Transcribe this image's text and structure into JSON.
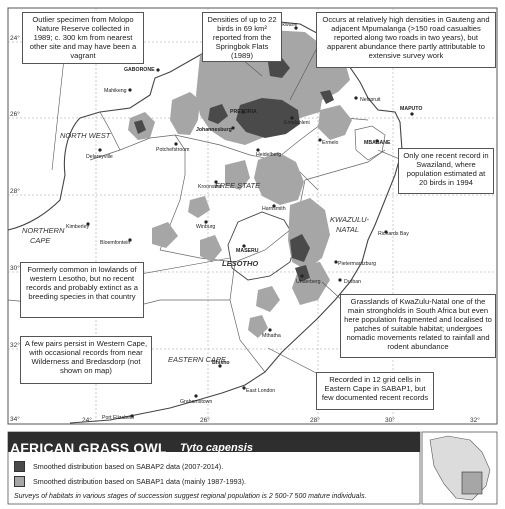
{
  "map": {
    "title": "AFRICAN GRASS OWL",
    "scientific_name": "Tyto capensis",
    "colors": {
      "sabap2": "#4a4a4a",
      "sabap1": "#a6a6a6",
      "background": "#ffffff",
      "border": "#666666"
    },
    "lat_labels": [
      {
        "text": "24°"
      },
      {
        "text": "26°"
      },
      {
        "text": "28°"
      },
      {
        "text": "30°"
      },
      {
        "text": "32°"
      },
      {
        "text": "34°"
      }
    ],
    "lon_labels": [
      {
        "text": "24°"
      },
      {
        "text": "26°"
      },
      {
        "text": "28°"
      },
      {
        "text": "30°"
      },
      {
        "text": "32°"
      }
    ],
    "regions": [
      {
        "text": "NORTH WEST"
      },
      {
        "text": "FREE STATE"
      },
      {
        "text": "KWAZULU-"
      },
      {
        "text": "NATAL"
      },
      {
        "text": "NORTHERN"
      },
      {
        "text": "CAPE"
      },
      {
        "text": "LESOTHO"
      },
      {
        "text": "EASTERN CAPE"
      }
    ],
    "towns": [
      {
        "name": "Polokwane"
      },
      {
        "name": "GABORONE"
      },
      {
        "name": "Mahikeng"
      },
      {
        "name": "PRETORIA"
      },
      {
        "name": "Johannesburg"
      },
      {
        "name": "Emalahleni"
      },
      {
        "name": "Nelspruit"
      },
      {
        "name": "MAPUTO"
      },
      {
        "name": "MBABANE"
      },
      {
        "name": "Ermelo"
      },
      {
        "name": "Delareyville"
      },
      {
        "name": "Potchefstroom"
      },
      {
        "name": "Heidelberg"
      },
      {
        "name": "Kroonstad"
      },
      {
        "name": "Kimberley"
      },
      {
        "name": "Winburg"
      },
      {
        "name": "Bloemfontein"
      },
      {
        "name": "Harrismith"
      },
      {
        "name": "MASERU"
      },
      {
        "name": "Richards Bay"
      },
      {
        "name": "Pietermaritzburg"
      },
      {
        "name": "Durban"
      },
      {
        "name": "Underberg"
      },
      {
        "name": "Mthatha"
      },
      {
        "name": "Bhisho"
      },
      {
        "name": "East London"
      },
      {
        "name": "Grahamstown"
      },
      {
        "name": "Port Elizabeth"
      }
    ],
    "callouts": [
      {
        "text": "Outlier specimen from Molopo Nature Reserve collected in 1989; c. 300 km from nearest other site and may have been a vagrant"
      },
      {
        "text": "Densities of up to 22 birds in 69 km² reported from the Springbok Flats (1989)"
      },
      {
        "text": "Occurs at relatively high densities in Gauteng and adjacent Mpumalanga (>150 road casualties reported along two roads in two years), but apparent abundance there partly attributable to extensive survey work"
      },
      {
        "text": "Only one recent record in Swaziland, where population estimated at 20 birds in 1994"
      },
      {
        "text": "Formerly common in lowlands of western Lesotho, but no recent records and probably extinct as a breeding species in that country"
      },
      {
        "text": "Grasslands of KwaZulu-Natal one of the main strongholds in South Africa but even here population fragmented and localised to patches of suitable habitat; undergoes nomadic movements related to rainfall and rodent abundance"
      },
      {
        "text": "A few pairs persist in Western Cape, with occasional records from near Wilderness and Bredasdorp (not shown on map)"
      },
      {
        "text": "Recorded in 12 grid cells in Eastern Cape in SABAP1, but few documented recent records"
      }
    ]
  },
  "legend": {
    "title": "AFRICAN GRASS OWL",
    "scientific_name": "Tyto capensis",
    "items": [
      {
        "label": "Smoothed distribution based on SABAP2 data (2007-2014).",
        "color": "#4a4a4a"
      },
      {
        "label": "Smoothed distribution based on SABAP1 data (mainly 1987-1993).",
        "color": "#a6a6a6"
      }
    ],
    "note": "Surveys of habitats in various stages of succession suggest regional population is 2 500-7 500 mature individuals."
  }
}
